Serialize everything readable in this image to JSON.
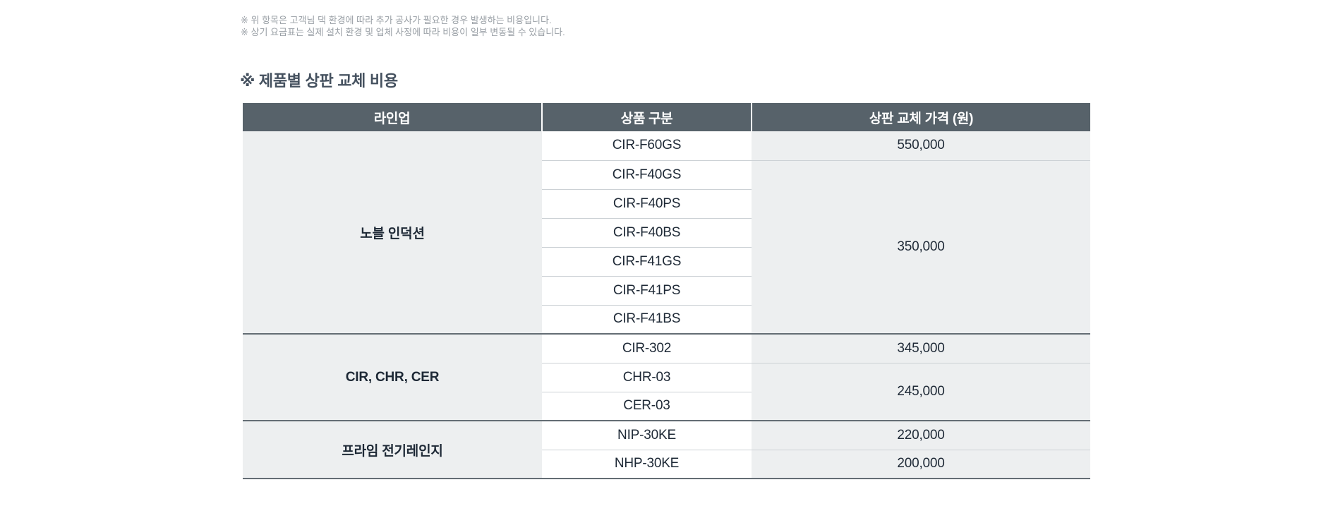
{
  "page": {
    "notes": [
      "※ 위 항목은 고객님 댁 환경에 따라 추가 공사가 필요한 경우 발생하는 비용입니다.",
      "※ 상기 요금표는 실제 설치 환경 및 업체 사정에 따라 비용이 일부 변동될 수 있습니다."
    ],
    "section_title": "※ 제품별 상판 교체 비용"
  },
  "table": {
    "headers": [
      "라인업",
      "상품 구분",
      "상판 교체 가격 (원)"
    ],
    "groups": [
      {
        "lineup": "노블 인덕션",
        "rows": [
          {
            "model": "CIR-F60GS",
            "price": "550,000",
            "price_rowspan": 1
          },
          {
            "model": "CIR-F40GS",
            "price": "350,000",
            "price_rowspan": 6
          },
          {
            "model": "CIR-F40PS"
          },
          {
            "model": "CIR-F40BS"
          },
          {
            "model": "CIR-F41GS"
          },
          {
            "model": "CIR-F41PS"
          },
          {
            "model": "CIR-F41BS"
          }
        ]
      },
      {
        "lineup": "CIR, CHR, CER",
        "rows": [
          {
            "model": "CIR-302",
            "price": "345,000",
            "price_rowspan": 1
          },
          {
            "model": "CHR-03",
            "price": "245,000",
            "price_rowspan": 2
          },
          {
            "model": "CER-03"
          }
        ]
      },
      {
        "lineup": "프라임 전기레인지",
        "rows": [
          {
            "model": "NIP-30KE",
            "price": "220,000",
            "price_rowspan": 1
          },
          {
            "model": "NHP-30KE",
            "price": "200,000",
            "price_rowspan": 1
          }
        ]
      }
    ]
  },
  "colors": {
    "page_bg": "#ffffff",
    "header_bg": "#57626a",
    "header_text": "#ffffff",
    "cell_bg_gray": "#edeff0",
    "cell_bg_white": "#ffffff",
    "body_text": "#1e2936",
    "row_line": "#ccd1d5",
    "group_line": "#646d74",
    "title_text": "#45515f",
    "note_text": "#9aa0a6"
  }
}
